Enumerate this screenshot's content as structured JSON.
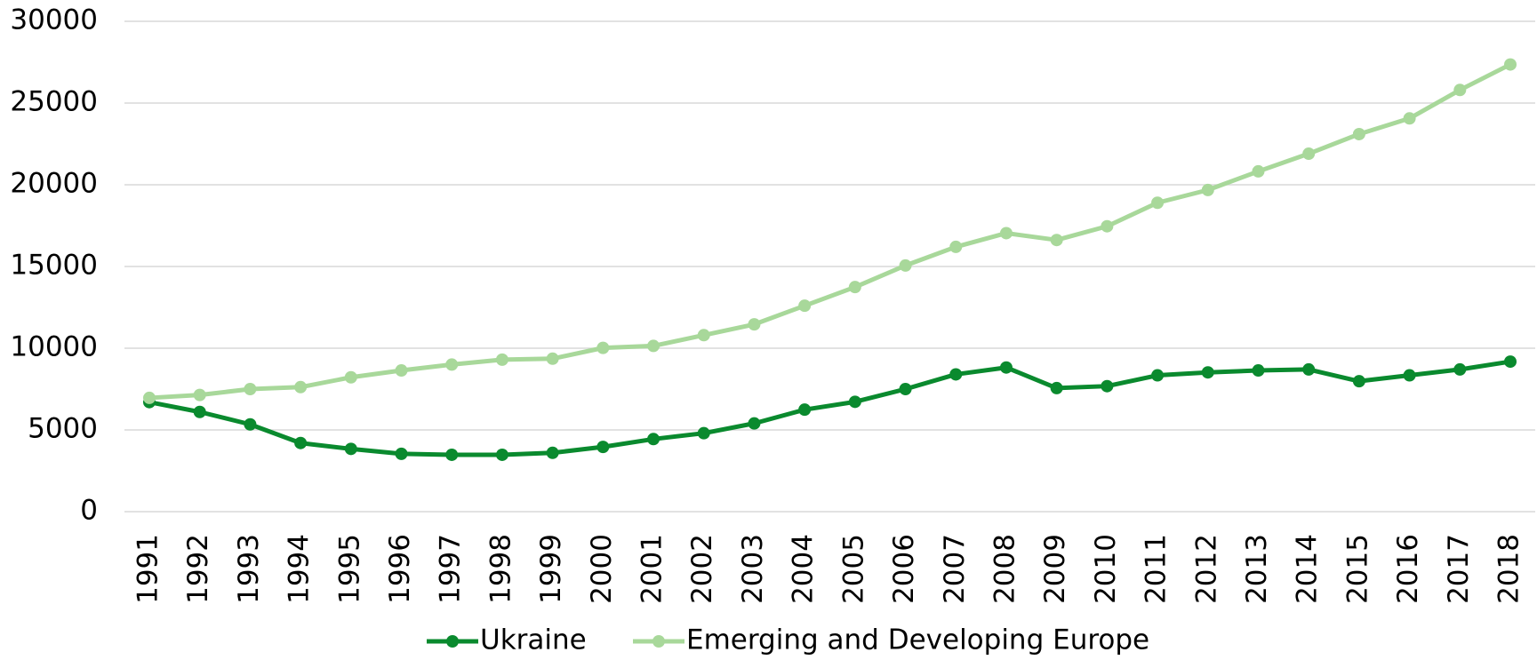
{
  "chart_data": {
    "type": "line",
    "categories": [
      "1991",
      "1992",
      "1993",
      "1994",
      "1995",
      "1996",
      "1997",
      "1998",
      "1999",
      "2000",
      "2001",
      "2002",
      "2003",
      "2004",
      "2005",
      "2006",
      "2007",
      "2008",
      "2009",
      "2010",
      "2011",
      "2012",
      "2013",
      "2014",
      "2015",
      "2016",
      "2017",
      "2018"
    ],
    "series": [
      {
        "name": "Ukraine",
        "color": "#0a8a2e",
        "values": [
          6700,
          6100,
          5340,
          4200,
          3840,
          3540,
          3480,
          3480,
          3600,
          3960,
          4440,
          4800,
          5400,
          6240,
          6720,
          7500,
          8400,
          8820,
          7560,
          7680,
          8340,
          8520,
          8640,
          8700,
          7980,
          8340,
          8700,
          9180
        ]
      },
      {
        "name": "Emerging and Developing Europe",
        "color": "#a8d89a",
        "values": [
          6960,
          7140,
          7500,
          7620,
          8220,
          8640,
          9000,
          9300,
          9360,
          10020,
          10140,
          10800,
          11460,
          12600,
          13740,
          15060,
          16200,
          17040,
          16620,
          17460,
          18900,
          19680,
          20820,
          21900,
          23100,
          24060,
          25800,
          27360
        ]
      }
    ],
    "ylim": [
      0,
      30000
    ],
    "yticks": [
      0,
      5000,
      10000,
      15000,
      20000,
      25000,
      30000
    ],
    "grid": true,
    "legend": "bottom"
  }
}
